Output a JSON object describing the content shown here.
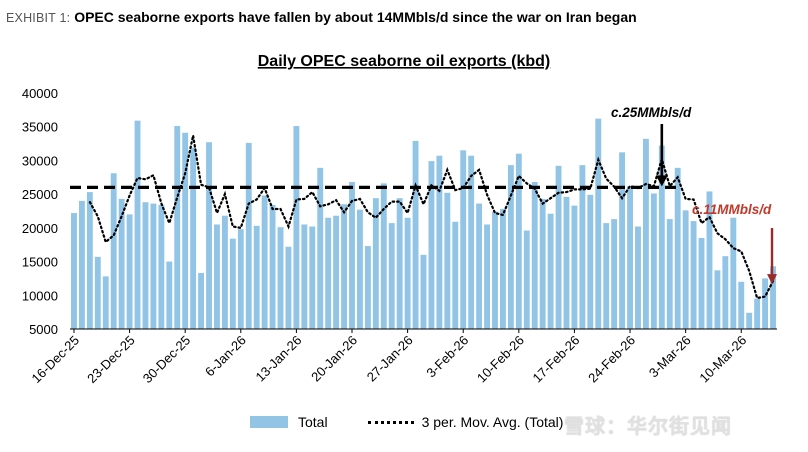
{
  "exhibit": {
    "tag": "EXHIBIT 1:",
    "headline": "OPEC seaborne exports have fallen by about 14MMbls/d since the war on Iran began"
  },
  "watermark": {
    "text": "雪球：华尔街见闻"
  },
  "colors": {
    "bars": "#92c4e6",
    "moving_avg": "#000000",
    "reference_line": "#000000",
    "arrow_top": "#000000",
    "arrow_end": "#9b2a2a",
    "label_end": "#c0392b"
  },
  "chart_data": {
    "type": "bar",
    "title": "Daily OPEC seaborne oil exports (kbd)",
    "xlabel": "",
    "ylabel": "",
    "ylim": [
      5000,
      40000
    ],
    "yticks": [
      5000,
      10000,
      15000,
      20000,
      25000,
      30000,
      35000,
      40000
    ],
    "x_tick_labels": [
      "16-Dec-25",
      "23-Dec-25",
      "30-Dec-25",
      "6-Jan-26",
      "13-Jan-26",
      "20-Jan-26",
      "27-Jan-26",
      "3-Feb-26",
      "10-Feb-26",
      "17-Feb-26",
      "24-Feb-26",
      "3-Mar-26",
      "10-Mar-26"
    ],
    "grid": false,
    "legend_position": "bottom",
    "series": [
      {
        "name": "Total",
        "type": "bar",
        "values": [
          22200,
          24000,
          25300,
          15700,
          12800,
          28100,
          24300,
          22000,
          35900,
          23800,
          23600,
          23400,
          15000,
          35100,
          34100,
          31900,
          13300,
          32700,
          20500,
          21800,
          18400,
          19800,
          32600,
          20300,
          24800,
          23400,
          20100,
          17200,
          35100,
          20500,
          20200,
          28900,
          21500,
          21800,
          23500,
          26800,
          22700,
          17300,
          24400,
          26600,
          20700,
          24400,
          21500,
          32900,
          16000,
          29900,
          30700,
          25200,
          20900,
          31500,
          30700,
          23600,
          20500,
          22400,
          22800,
          29300,
          31000,
          19600,
          26800,
          24300,
          22100,
          29200,
          24600,
          23300,
          29300,
          24900,
          36200,
          20700,
          21300,
          31200,
          26200,
          20200,
          33200,
          25100,
          32200,
          21300,
          28900,
          22600,
          21000,
          18500,
          25400,
          13700,
          15800,
          21500,
          12000,
          7400,
          9500,
          12500,
          14300
        ]
      },
      {
        "name": "3 per. Mov. Avg. (Total)",
        "type": "line",
        "values": [
          null,
          null,
          23800,
          21700,
          17900,
          18900,
          21700,
          24800,
          27400,
          27200,
          27800,
          23600,
          20700,
          24500,
          28100,
          33700,
          26400,
          26000,
          22200,
          25000,
          20200,
          20000,
          23600,
          24200,
          25900,
          22800,
          22800,
          20200,
          24200,
          24300,
          25300,
          23200,
          23500,
          24100,
          22300,
          24000,
          24300,
          22300,
          21500,
          22800,
          23900,
          23900,
          22200,
          26300,
          23500,
          26300,
          25500,
          28600,
          25600,
          25900,
          27700,
          28600,
          24900,
          22200,
          21900,
          24800,
          27700,
          26600,
          25800,
          23600,
          24400,
          25200,
          25300,
          25700,
          25700,
          25800,
          30100,
          27300,
          26100,
          24400,
          26200,
          25900,
          26500,
          26200,
          30200,
          26200,
          27500,
          24300,
          24200,
          20700,
          21600,
          19200,
          18300,
          17000,
          16500,
          13600,
          9600,
          9800,
          12100
        ]
      }
    ],
    "reference_line": {
      "value": 26000,
      "style": "dashed"
    },
    "annotations": [
      {
        "text": "c.25MMbls/d",
        "color": "#000000",
        "arrow_to_index": 74,
        "arrow_to_value": 26000
      },
      {
        "text": "c.11MMbls/d",
        "color": "#c0392b",
        "arrow_to_index": 88,
        "arrow_to_value": 11500
      }
    ]
  },
  "legend": {
    "total_label": "Total",
    "mavg_label": "3 per. Mov. Avg. (Total)"
  }
}
